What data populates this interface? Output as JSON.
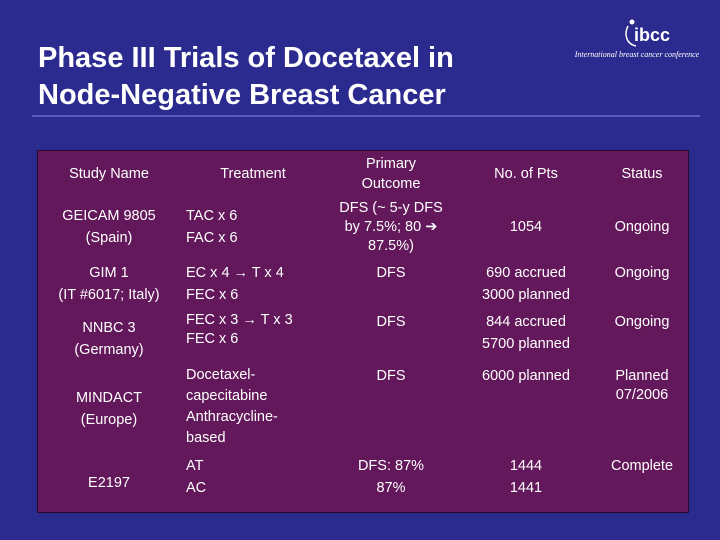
{
  "slide": {
    "title_line1": "Phase III Trials of Docetaxel in",
    "title_line2": "Node-Negative Breast Cancer"
  },
  "logo": {
    "mark": "ibcc",
    "caption": "International breast cancer conference"
  },
  "table": {
    "headers": {
      "study": "Study Name",
      "treatment": "Treatment",
      "outcome_line1": "Primary",
      "outcome_line2": "Outcome",
      "pts": "No. of Pts",
      "status": "Status"
    },
    "rows": [
      {
        "study1": "GEICAM 9805",
        "study2": "(Spain)",
        "tx1": "TAC x 6",
        "tx2": "FAC x 6",
        "out1": "DFS (~ 5-y DFS",
        "out2": "by 7.5%; 80 ➔",
        "out3": "87.5%)",
        "pts1": "1054",
        "status": "Ongoing"
      },
      {
        "study1": "GIM 1",
        "study2": "(IT #6017; Italy)",
        "tx1": "EC x 4 → T x 4",
        "tx2": "FEC x 6",
        "out1": "DFS",
        "pts1": "690 accrued",
        "pts2": "3000 planned",
        "status": "Ongoing"
      },
      {
        "study1": "NNBC 3",
        "study2": "(Germany)",
        "tx1": "FEC x 3 → T x 3",
        "tx2": "FEC x 6",
        "out1": "DFS",
        "pts1": "844 accrued",
        "pts2": "5700 planned",
        "status": "Ongoing"
      },
      {
        "study1": "MINDACT",
        "study2": "(Europe)",
        "tx1": "Docetaxel-",
        "tx2": "capecitabine",
        "tx3": "Anthracycline-",
        "tx4": "based",
        "out1": "DFS",
        "pts1": "6000 planned",
        "status1": "Planned",
        "status2": "07/2006"
      },
      {
        "study1": "E2197",
        "tx1": "AT",
        "tx2": "AC",
        "out1": "DFS: 87%",
        "out2": "87%",
        "pts1": "1444",
        "pts2": "1441",
        "status": "Complete"
      }
    ]
  },
  "colors": {
    "background": "#2b2b8f",
    "table_fill": "#62185a",
    "text": "#ffffff"
  }
}
